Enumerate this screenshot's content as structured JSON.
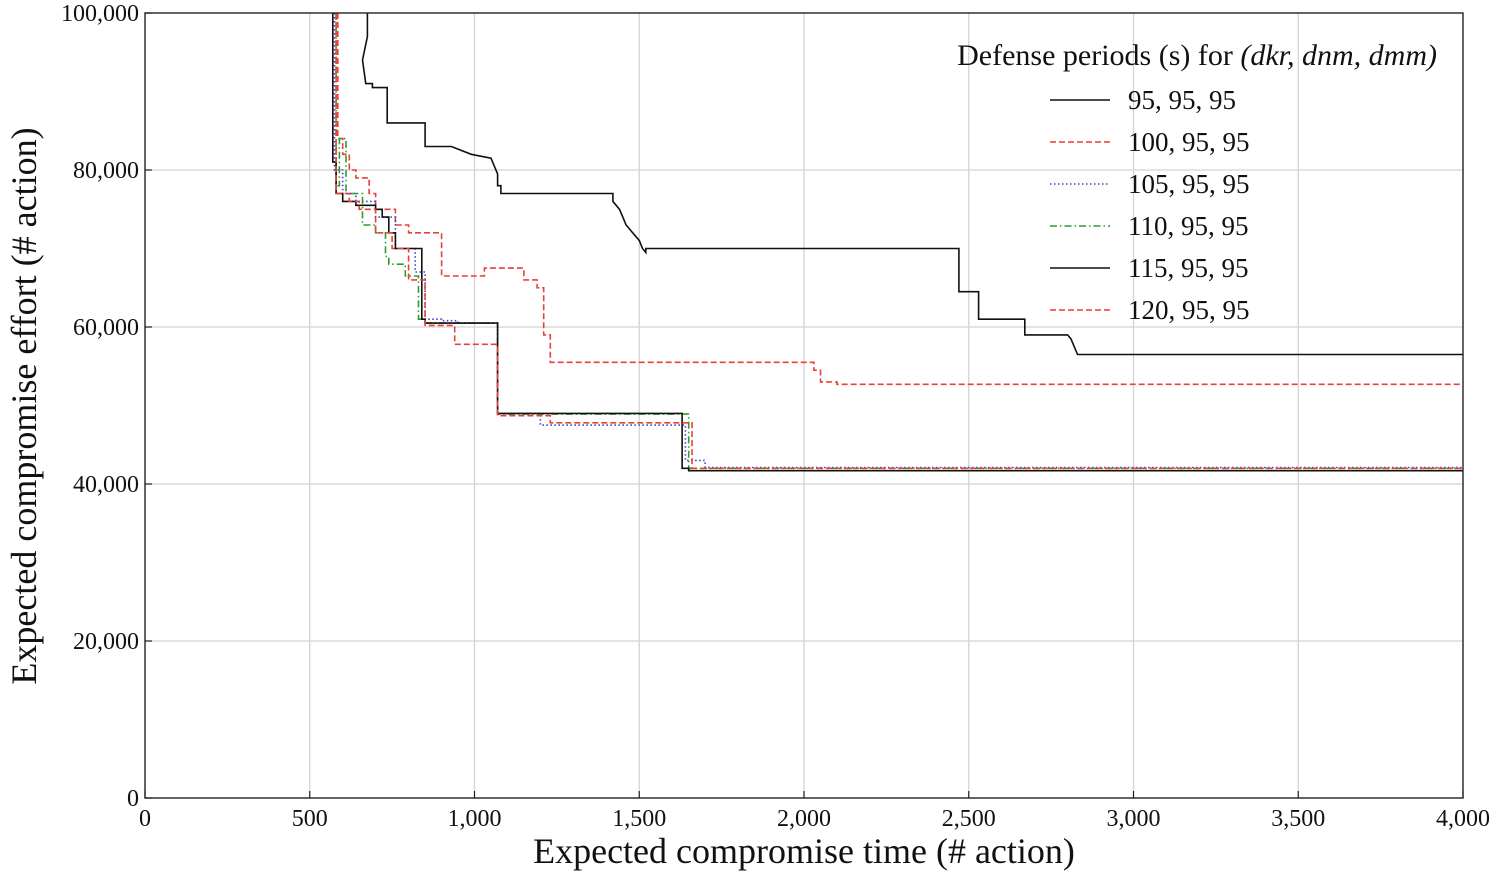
{
  "chart_data": {
    "type": "line",
    "title": "",
    "xlabel": "Expected compromise time (# action)",
    "ylabel": "Expected compromise effort (# action)",
    "xlim": [
      0,
      4000
    ],
    "ylim": [
      0,
      100000
    ],
    "grid": true,
    "x_ticks": [
      "0",
      "500",
      "1,000",
      "1,500",
      "2,000",
      "2,500",
      "3,000",
      "3,500",
      "4,000"
    ],
    "y_ticks": [
      "0",
      "20,000",
      "40,000",
      "60,000",
      "80,000",
      "100,000"
    ],
    "legend": {
      "title_prefix": "Defense periods (s) for ",
      "title_math": "(dkr, dnm, dmm)",
      "placement": "top-right"
    },
    "series": [
      {
        "name": "95, 95, 95",
        "color": "#111111",
        "dash": "solid",
        "x": [
          675,
          675,
          660,
          670,
          690,
          690,
          735,
          735,
          850,
          850,
          930,
          990,
          990,
          1050,
          1050,
          1070,
          1070,
          1080,
          1080,
          1420,
          1420,
          1440,
          1450,
          1460,
          1470,
          1480,
          1490,
          1500,
          1510,
          1520,
          1520,
          2470,
          2470,
          2530,
          2530,
          2670,
          2670,
          2800,
          2810,
          2820,
          2830,
          4000
        ],
        "y": [
          100000,
          97000,
          94000,
          91000,
          91000,
          90500,
          90500,
          86000,
          86000,
          83000,
          83000,
          82000,
          82000,
          81500,
          81500,
          79500,
          78000,
          78000,
          77000,
          77000,
          76000,
          75000,
          74000,
          73000,
          72500,
          72000,
          71500,
          71000,
          70000,
          69500,
          70000,
          70000,
          64500,
          64500,
          61000,
          61000,
          59000,
          59000,
          58500,
          57500,
          56500,
          56500
        ]
      },
      {
        "name": "100, 95, 95",
        "color": "#e8403a",
        "dash": "dashed",
        "x": [
          585,
          585,
          600,
          600,
          620,
          620,
          640,
          640,
          680,
          680,
          700,
          700,
          760,
          760,
          800,
          800,
          900,
          900,
          1030,
          1030,
          1150,
          1150,
          1190,
          1190,
          1210,
          1210,
          1230,
          1230,
          2030,
          2030,
          2050,
          2050,
          2100,
          2100,
          4000
        ],
        "y": [
          100000,
          84000,
          84000,
          82000,
          82000,
          80000,
          80000,
          79000,
          79000,
          77000,
          77000,
          75000,
          75000,
          73000,
          73000,
          72000,
          72000,
          66500,
          66500,
          67500,
          67500,
          66000,
          66000,
          65000,
          65000,
          59000,
          59000,
          55500,
          55500,
          54500,
          54500,
          53000,
          53000,
          52700,
          52700
        ]
      },
      {
        "name": "105, 95, 95",
        "color": "#3344cc",
        "dash": "dotted",
        "x": [
          575,
          575,
          600,
          600,
          640,
          640,
          700,
          700,
          760,
          760,
          820,
          820,
          850,
          850,
          900,
          900,
          950,
          950,
          1070,
          1070,
          1200,
          1200,
          1640,
          1640,
          1700,
          1700,
          4000
        ],
        "y": [
          100000,
          80000,
          80000,
          77000,
          77000,
          76000,
          76000,
          74000,
          74000,
          70000,
          70000,
          67000,
          67000,
          61000,
          61000,
          60800,
          60800,
          60500,
          60500,
          49000,
          49000,
          47500,
          47500,
          43000,
          43000,
          42100,
          42100
        ]
      },
      {
        "name": "110, 95, 95",
        "color": "#2f9b2f",
        "dash": "dashdot",
        "x": [
          580,
          580,
          590,
          590,
          610,
          610,
          660,
          660,
          700,
          700,
          730,
          730,
          740,
          740,
          790,
          790,
          830,
          830,
          850,
          850,
          1070,
          1070,
          1650,
          1650,
          4000
        ],
        "y": [
          100000,
          78000,
          78000,
          84000,
          84000,
          77000,
          77000,
          73000,
          73000,
          72000,
          72000,
          69000,
          69000,
          68000,
          68000,
          66500,
          66500,
          61000,
          61000,
          60500,
          60500,
          48900,
          48900,
          42000,
          42000
        ]
      },
      {
        "name": "115, 95, 95",
        "color": "#111111",
        "dash": "solid",
        "x": [
          570,
          570,
          580,
          580,
          600,
          600,
          640,
          640,
          700,
          700,
          720,
          720,
          740,
          740,
          760,
          760,
          840,
          840,
          850,
          850,
          1070,
          1070,
          1630,
          1630,
          1650,
          1650,
          4000
        ],
        "y": [
          100000,
          81000,
          81000,
          77000,
          77000,
          76000,
          76000,
          75500,
          75500,
          75000,
          75000,
          74000,
          74000,
          72000,
          72000,
          70000,
          70000,
          61000,
          61000,
          60500,
          60500,
          49000,
          49000,
          42000,
          42000,
          41700,
          41700
        ]
      },
      {
        "name": "120, 95, 95",
        "color": "#e8403a",
        "dash": "dashed",
        "x": [
          580,
          580,
          620,
          620,
          650,
          650,
          700,
          700,
          750,
          750,
          800,
          800,
          850,
          850,
          940,
          940,
          1070,
          1070,
          1230,
          1230,
          1660,
          1660,
          4000
        ],
        "y": [
          100000,
          77000,
          77000,
          76000,
          76000,
          75000,
          75000,
          72000,
          72000,
          70000,
          70000,
          66000,
          66000,
          60200,
          60200,
          57800,
          57800,
          48700,
          48700,
          47800,
          47800,
          42000,
          42000
        ]
      }
    ]
  }
}
